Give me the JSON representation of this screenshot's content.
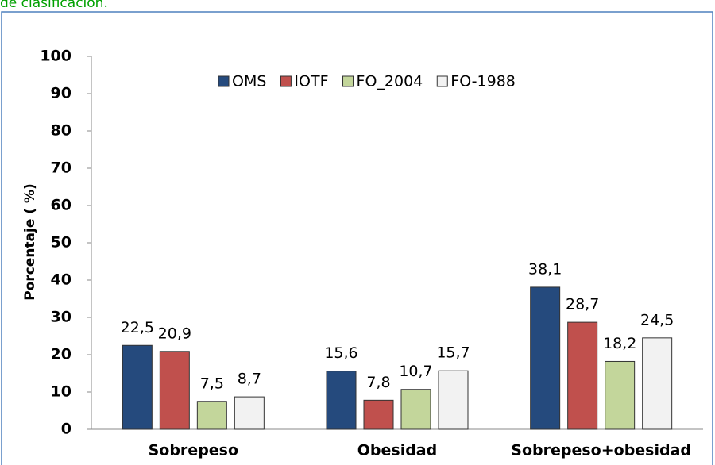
{
  "caption": "de clasificación.",
  "chart_data": {
    "type": "bar",
    "y_label": "Porcentaje ( %)",
    "categories": [
      "Sobrepeso",
      "Obesidad",
      "Sobrepeso+obesidad"
    ],
    "series": [
      {
        "name": "OMS",
        "color": "#254a7d",
        "values": [
          22.5,
          15.6,
          38.1
        ],
        "value_labels": [
          "22,5",
          "15,6",
          "38,1"
        ]
      },
      {
        "name": "IOTF",
        "color": "#c0504d",
        "values": [
          20.9,
          7.8,
          28.7
        ],
        "value_labels": [
          "20,9",
          "7,8",
          "28,7"
        ]
      },
      {
        "name": "FO_2004",
        "color": "#c3d69b",
        "values": [
          7.5,
          10.7,
          18.2
        ],
        "value_labels": [
          "7,5",
          "10,7",
          "18,2"
        ]
      },
      {
        "name": "FO-1988",
        "color": "#f2f2f2",
        "values": [
          8.7,
          15.7,
          24.5
        ],
        "value_labels": [
          "8,7",
          "15,7",
          "24,5"
        ]
      }
    ],
    "ylim": [
      0,
      100
    ],
    "yticks": [
      0,
      10,
      20,
      30,
      40,
      50,
      60,
      70,
      80,
      90,
      100
    ],
    "grid": false
  }
}
